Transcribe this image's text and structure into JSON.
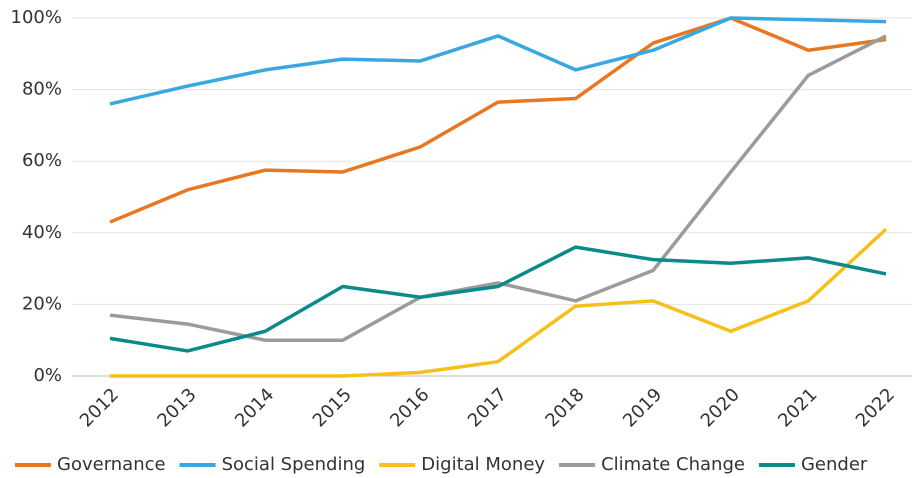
{
  "chart_data": {
    "type": "line",
    "categories": [
      "2012",
      "2013",
      "2014",
      "2015",
      "2016",
      "2017",
      "2018",
      "2019",
      "2020",
      "2021",
      "2022"
    ],
    "series": [
      {
        "name": "Governance",
        "color": "#e87722",
        "values": [
          43,
          52,
          57.5,
          57,
          64,
          76.5,
          77.5,
          93,
          100,
          91,
          94
        ]
      },
      {
        "name": "Social Spending",
        "color": "#3aa8e0",
        "values": [
          76,
          81,
          85.5,
          88.5,
          88,
          95,
          85.5,
          91,
          100,
          99.5,
          99
        ]
      },
      {
        "name": "Digital Money",
        "color": "#f5c01a",
        "values": [
          0,
          0,
          0,
          0,
          1,
          4,
          19.5,
          21,
          12.5,
          21,
          41
        ]
      },
      {
        "name": "Climate Change",
        "color": "#9b9b9b",
        "values": [
          17,
          14.5,
          10,
          10,
          22,
          26,
          21,
          29.5,
          57,
          84,
          95
        ]
      },
      {
        "name": "Gender",
        "color": "#0a8a8a",
        "values": [
          10.5,
          7,
          12.5,
          25,
          22,
          25,
          36,
          32.5,
          31.5,
          33,
          28.5
        ]
      }
    ],
    "ylim": [
      0,
      100
    ],
    "yticks": [
      {
        "value": 0,
        "label": "0%"
      },
      {
        "value": 20,
        "label": "20%"
      },
      {
        "value": 40,
        "label": "40%"
      },
      {
        "value": 60,
        "label": "60%"
      },
      {
        "value": 80,
        "label": "80%"
      },
      {
        "value": 100,
        "label": "100%"
      }
    ],
    "grid": true,
    "legend": "bottom"
  }
}
